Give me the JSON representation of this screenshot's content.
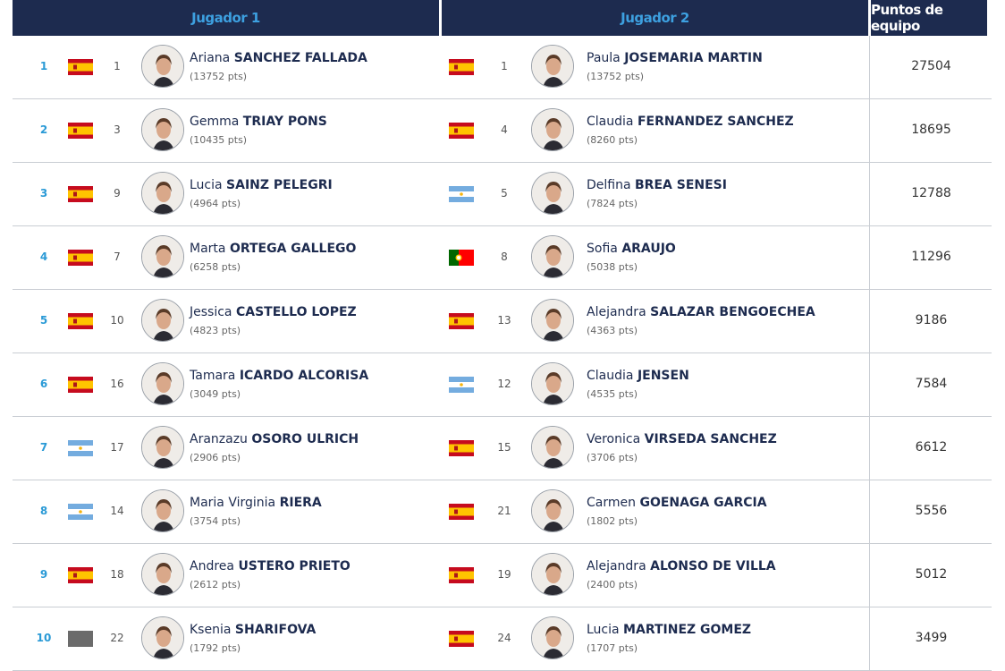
{
  "header": {
    "player1": "Jugador 1",
    "player2": "Jugador 2",
    "team_points": "Puntos de equipo"
  },
  "rows": [
    {
      "rank": 1,
      "player1": {
        "ranking": 1,
        "first_name": "Ariana",
        "last_name": "SANCHEZ FALLADA",
        "points": "(13752 pts)"
      },
      "player2": {
        "ranking": 1,
        "first_name": "Paula",
        "last_name": "JOSEMARIA MARTIN",
        "points": "(13752 pts)"
      },
      "team_points": 27504
    },
    {
      "rank": 2,
      "player1": {
        "ranking": 3,
        "first_name": "Gemma",
        "last_name": "TRIAY PONS",
        "points": "(10435 pts)"
      },
      "player2": {
        "ranking": 4,
        "first_name": "Claudia",
        "last_name": "FERNANDEZ SANCHEZ",
        "points": "(8260 pts)"
      },
      "team_points": 18695
    },
    {
      "rank": 3,
      "player1": {
        "ranking": 9,
        "first_name": "Lucia",
        "last_name": "SAINZ PELEGRI",
        "points": "(4964 pts)"
      },
      "player2": {
        "ranking": 5,
        "first_name": "Delfina",
        "last_name": "BREA SENESI",
        "points": "(7824 pts)"
      },
      "team_points": 12788
    },
    {
      "rank": 4,
      "player1": {
        "ranking": 7,
        "first_name": "Marta",
        "last_name": "ORTEGA GALLEGO",
        "points": "(6258 pts)"
      },
      "player2": {
        "ranking": 8,
        "first_name": "Sofia",
        "last_name": "ARAUJO",
        "points": "(5038 pts)"
      },
      "team_points": 11296
    },
    {
      "rank": 5,
      "player1": {
        "ranking": 10,
        "first_name": "Jessica",
        "last_name": "CASTELLO LOPEZ",
        "points": "(4823 pts)"
      },
      "player2": {
        "ranking": 13,
        "first_name": "Alejandra",
        "last_name": "SALAZAR BENGOECHEA",
        "points": "(4363 pts)"
      },
      "team_points": 9186
    },
    {
      "rank": 6,
      "player1": {
        "ranking": 16,
        "first_name": "Tamara",
        "last_name": "ICARDO ALCORISA",
        "points": "(3049 pts)"
      },
      "player2": {
        "ranking": 12,
        "first_name": "Claudia",
        "last_name": "JENSEN",
        "points": "(4535 pts)"
      },
      "team_points": 7584
    },
    {
      "rank": 7,
      "player1": {
        "ranking": 17,
        "first_name": "Aranzazu",
        "last_name": "OSORO ULRICH",
        "points": "(2906 pts)"
      },
      "player2": {
        "ranking": 15,
        "first_name": "Veronica",
        "last_name": "VIRSEDA SANCHEZ",
        "points": "(3706 pts)"
      },
      "team_points": 6612
    },
    {
      "rank": 8,
      "player1": {
        "ranking": 14,
        "first_name": "Maria Virginia",
        "last_name": "RIERA",
        "points": "(3754 pts)"
      },
      "player2": {
        "ranking": 21,
        "first_name": "Carmen",
        "last_name": "GOENAGA GARCIA",
        "points": "(1802 pts)"
      },
      "team_points": 5556
    },
    {
      "rank": 9,
      "player1": {
        "ranking": 18,
        "first_name": "Andrea",
        "last_name": "USTERO PRIETO",
        "points": "(2612 pts)"
      },
      "player2": {
        "ranking": 19,
        "first_name": "Alejandra",
        "last_name": "ALONSO DE VILLA",
        "points": "(2400 pts)"
      },
      "team_points": 5012
    },
    {
      "rank": 10,
      "player1": {
        "ranking": 22,
        "first_name": "Ksenia",
        "last_name": "SHARIFOVA",
        "points": "(1792 pts)"
      },
      "player2": {
        "ranking": 24,
        "first_name": "Lucia",
        "last_name": "MARTINEZ GOMEZ",
        "points": "(1707 pts)"
      },
      "team_points": 3499
    }
  ]
}
